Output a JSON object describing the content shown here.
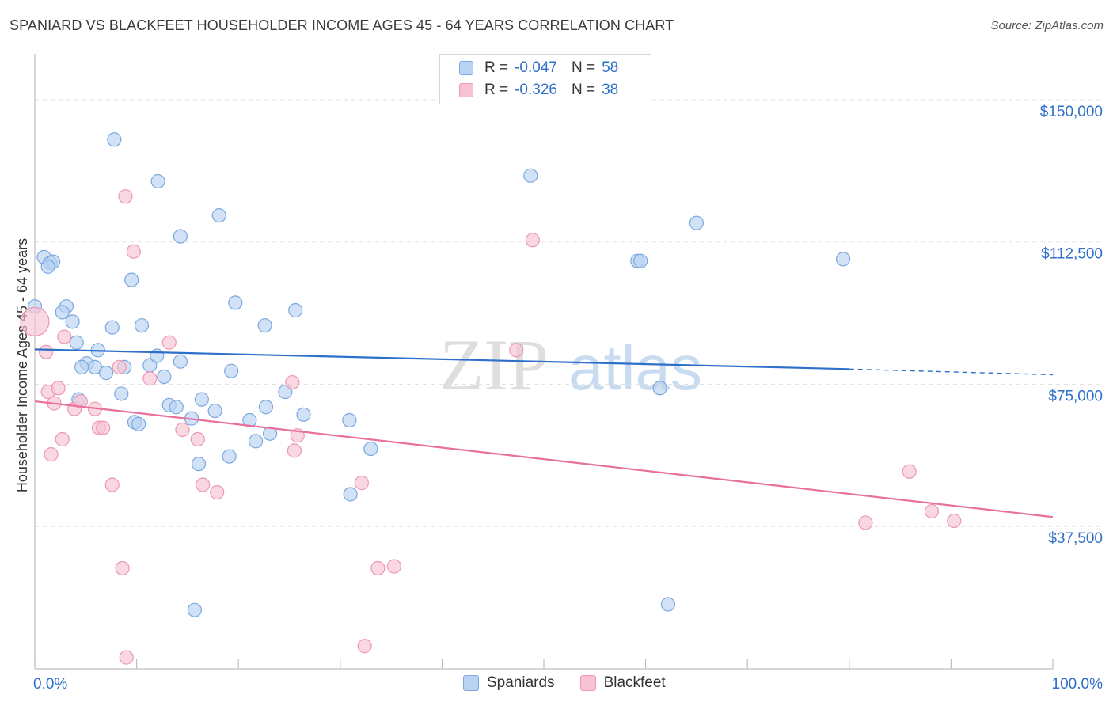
{
  "header": {
    "title": "SPANIARD VS BLACKFEET HOUSEHOLDER INCOME AGES 45 - 64 YEARS CORRELATION CHART",
    "source": "Source: ZipAtlas.com"
  },
  "legend": {
    "rows": [
      {
        "r_label": "R =",
        "r_value": "-0.047",
        "n_label": "N =",
        "n_value": "58"
      },
      {
        "r_label": "R =",
        "r_value": "-0.326",
        "n_label": "N =",
        "n_value": "38"
      }
    ],
    "bottom": [
      "Spaniards",
      "Blackfeet"
    ]
  },
  "colors": {
    "blue_fill": "#b9d3f2",
    "blue_stroke": "#7aa8e0",
    "blue_line": "#2e6fc9",
    "pink_fill": "#f7c3d2",
    "pink_stroke": "#ec97b3",
    "pink_line": "#e8709a",
    "axis_label": "#2e6fc9",
    "grid": "#e2e2e2"
  },
  "chart_data": {
    "type": "scatter",
    "title": "SPANIARD VS BLACKFEET HOUSEHOLDER INCOME AGES 45 - 64 YEARS CORRELATION CHART",
    "xlabel": "",
    "ylabel": "Householder Income Ages 45 - 64 years",
    "xlim": [
      0,
      100
    ],
    "ylim": [
      0,
      160000
    ],
    "x_tick_labels": [
      "0.0%",
      "100.0%"
    ],
    "y_ticks": [
      37500,
      75000,
      112500,
      150000
    ],
    "y_tick_labels": [
      "$37,500",
      "$75,000",
      "$112,500",
      "$150,000"
    ],
    "watermark": [
      "ZIP",
      "atlas"
    ],
    "series": [
      {
        "name": "Spaniards",
        "r": -0.047,
        "n": 58,
        "trend": {
          "x0": 0,
          "y0": 84200,
          "x1": 80,
          "y1": 79000,
          "dash_to_x": 100,
          "dash_to_y": 77500
        },
        "points": [
          [
            7.8,
            139500
          ],
          [
            12.1,
            128500
          ],
          [
            0.9,
            108500
          ],
          [
            1.5,
            107000
          ],
          [
            1.8,
            107300
          ],
          [
            1.3,
            106000
          ],
          [
            0,
            95500
          ],
          [
            18.1,
            119500
          ],
          [
            14.3,
            114000
          ],
          [
            9.5,
            102500
          ],
          [
            3.1,
            95500
          ],
          [
            2.7,
            94000
          ],
          [
            3.7,
            91500
          ],
          [
            19.7,
            96500
          ],
          [
            25.6,
            94500
          ],
          [
            7.6,
            90000
          ],
          [
            10.5,
            90500
          ],
          [
            22.6,
            90500
          ],
          [
            4.1,
            86000
          ],
          [
            6.2,
            84000
          ],
          [
            8.8,
            79500
          ],
          [
            5.1,
            80500
          ],
          [
            4.6,
            79500
          ],
          [
            11.3,
            80000
          ],
          [
            14.3,
            81000
          ],
          [
            5.9,
            79500
          ],
          [
            12.0,
            82500
          ],
          [
            7.0,
            78000
          ],
          [
            19.3,
            78500
          ],
          [
            24.6,
            73000
          ],
          [
            12.7,
            77000
          ],
          [
            8.5,
            72500
          ],
          [
            16.4,
            71000
          ],
          [
            13.2,
            69500
          ],
          [
            4.3,
            71000
          ],
          [
            17.7,
            68000
          ],
          [
            13.9,
            69000
          ],
          [
            22.7,
            69000
          ],
          [
            26.4,
            67000
          ],
          [
            15.4,
            66000
          ],
          [
            21.1,
            65500
          ],
          [
            9.8,
            65000
          ],
          [
            10.2,
            64500
          ],
          [
            30.9,
            65500
          ],
          [
            23.1,
            62000
          ],
          [
            21.7,
            60000
          ],
          [
            19.1,
            56000
          ],
          [
            16.1,
            54000
          ],
          [
            33.0,
            58000
          ],
          [
            31.0,
            46000
          ],
          [
            48.7,
            130000
          ],
          [
            65.0,
            117500
          ],
          [
            59.2,
            107500
          ],
          [
            59.5,
            107500
          ],
          [
            79.4,
            108000
          ],
          [
            61.4,
            74000
          ],
          [
            15.7,
            15500
          ],
          [
            62.2,
            17000
          ]
        ]
      },
      {
        "name": "Blackfeet",
        "r": -0.326,
        "n": 38,
        "trend": {
          "x0": 0,
          "y0": 70500,
          "x1": 100,
          "y1": 40000
        },
        "points": [
          [
            0,
            91500
          ],
          [
            8.9,
            124500
          ],
          [
            9.7,
            110000
          ],
          [
            1.1,
            83500
          ],
          [
            2.9,
            87500
          ],
          [
            13.2,
            86000
          ],
          [
            47.3,
            84000
          ],
          [
            1.3,
            73000
          ],
          [
            2.3,
            74000
          ],
          [
            8.3,
            79500
          ],
          [
            11.3,
            76500
          ],
          [
            25.3,
            75500
          ],
          [
            1.9,
            70000
          ],
          [
            3.9,
            68500
          ],
          [
            4.5,
            70500
          ],
          [
            5.9,
            68500
          ],
          [
            6.3,
            63500
          ],
          [
            6.7,
            63500
          ],
          [
            14.5,
            63000
          ],
          [
            16.0,
            60500
          ],
          [
            2.7,
            60500
          ],
          [
            1.6,
            56500
          ],
          [
            25.5,
            57500
          ],
          [
            25.8,
            61500
          ],
          [
            7.6,
            48500
          ],
          [
            16.5,
            48500
          ],
          [
            17.9,
            46500
          ],
          [
            32.1,
            49000
          ],
          [
            48.9,
            113000
          ],
          [
            85.9,
            52000
          ],
          [
            8.6,
            26500
          ],
          [
            33.7,
            26500
          ],
          [
            35.3,
            27000
          ],
          [
            81.6,
            38500
          ],
          [
            88.1,
            41500
          ],
          [
            90.3,
            39000
          ],
          [
            9.0,
            3000
          ],
          [
            32.4,
            6000
          ]
        ]
      }
    ]
  }
}
